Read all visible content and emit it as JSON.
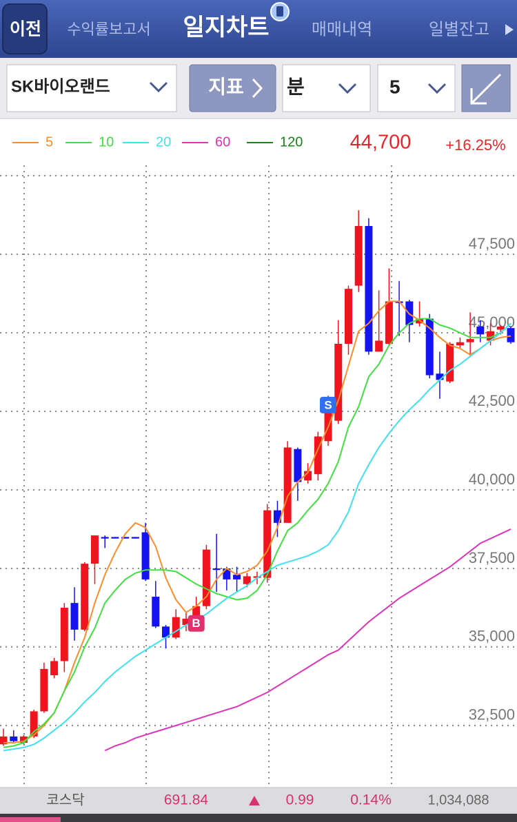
{
  "nav": {
    "back": "이전",
    "tabs": [
      "수익률보고서",
      "일지차트",
      "매매내역",
      "일별잔고"
    ]
  },
  "toolbar": {
    "stock": "SK바이오랜드",
    "indicator": "지표",
    "period": "분",
    "interval": "5"
  },
  "chart_data": {
    "type": "candlestick",
    "price": "44,700",
    "change": "+16.25%",
    "up_color": "#f0141e",
    "down_color": "#1414f0",
    "ylim": [
      30590,
      50330
    ],
    "yticks": [
      {
        "value": 32500,
        "label": "32,500"
      },
      {
        "value": 35000,
        "label": "35,000"
      },
      {
        "value": 37500,
        "label": "37,500"
      },
      {
        "value": 40000,
        "label": "40,000"
      },
      {
        "value": 42500,
        "label": "42,500"
      },
      {
        "value": 45000,
        "label": "45,000"
      },
      {
        "value": 47500,
        "label": "47,500"
      }
    ],
    "grid": true,
    "open": [
      31900,
      32150,
      31950,
      32150,
      32950,
      34100,
      34550,
      36400,
      35550,
      37650,
      38500,
      38500,
      38500,
      38500,
      38650,
      36600,
      35650,
      35300,
      35700,
      35850,
      36300,
      37500,
      37500,
      37300,
      37000,
      37200,
      37200,
      39350,
      38950,
      41300,
      40300,
      40500,
      41550,
      42200,
      44650,
      46500,
      48400,
      44400,
      44650,
      46000,
      46000,
      45300,
      45450,
      43700,
      43450,
      44600,
      44700,
      45200,
      44750,
      45100,
      45150
    ],
    "high": [
      32400,
      32350,
      32200,
      33000,
      34500,
      34650,
      36400,
      36900,
      37700,
      38550,
      38550,
      38500,
      38500,
      38500,
      38950,
      37100,
      35700,
      36200,
      36100,
      36600,
      38250,
      38600,
      37550,
      37550,
      37350,
      37400,
      39550,
      39650,
      41550,
      41350,
      40850,
      41850,
      43000,
      45400,
      46500,
      48900,
      48650,
      46350,
      47050,
      46650,
      46050,
      46000,
      45600,
      44400,
      44700,
      44850,
      45650,
      45400,
      45300,
      45250,
      45200
    ],
    "low": [
      31850,
      31950,
      31900,
      32100,
      32900,
      34000,
      34200,
      35200,
      35500,
      37000,
      38150,
      38450,
      38450,
      38450,
      37100,
      35600,
      34950,
      35250,
      35500,
      35700,
      36200,
      36750,
      36800,
      36750,
      36900,
      37000,
      37050,
      38500,
      38950,
      39650,
      40200,
      40300,
      41400,
      42100,
      44300,
      46300,
      44300,
      44400,
      44600,
      44900,
      44700,
      45200,
      43550,
      42900,
      43400,
      44500,
      44250,
      44700,
      44600,
      44950,
      44650
    ],
    "close": [
      32150,
      32000,
      32150,
      32950,
      34300,
      34550,
      36250,
      35550,
      37650,
      38550,
      38450,
      38450,
      38450,
      38450,
      37150,
      35650,
      35300,
      35950,
      35900,
      36300,
      38100,
      37450,
      37150,
      37150,
      37250,
      37250,
      39350,
      38950,
      41350,
      40250,
      40600,
      41700,
      42550,
      44650,
      46400,
      48400,
      44400,
      44750,
      46000,
      45950,
      45250,
      45450,
      43650,
      43500,
      44650,
      44700,
      44800,
      44950,
      45050,
      45200,
      44700
    ],
    "series": [
      {
        "name": "5",
        "color": "#ff8c28",
        "values": [
          31950,
          31950,
          32000,
          32200,
          32500,
          32900,
          33600,
          34500,
          35300,
          36400,
          37300,
          38000,
          38600,
          38950,
          38800,
          38200,
          37200,
          36500,
          36100,
          36300,
          36600,
          37150,
          37500,
          37300,
          37400,
          37600,
          38050,
          38800,
          39800,
          40250,
          40550,
          41300,
          42000,
          42850,
          43950,
          45050,
          45300,
          45700,
          46000,
          46000,
          45600,
          45400,
          45150,
          44850,
          44600,
          44500,
          44300,
          44500,
          44750,
          44850,
          44900
        ]
      },
      {
        "name": "10",
        "color": "#3fe03f",
        "values": [
          31800,
          31850,
          31950,
          32300,
          32550,
          32900,
          33600,
          34200,
          35000,
          35600,
          36400,
          36800,
          37150,
          37350,
          37450,
          37450,
          37450,
          37400,
          37200,
          37000,
          36850,
          36700,
          36600,
          36500,
          36550,
          36800,
          37300,
          38050,
          38700,
          38950,
          39350,
          39700,
          40200,
          40900,
          42000,
          42650,
          43600,
          44000,
          44600,
          45000,
          45300,
          45450,
          45450,
          45250,
          45150,
          45000,
          44850,
          44850,
          44850,
          45000,
          45300
        ]
      },
      {
        "name": "20",
        "color": "#3ee2f2",
        "values": [
          31700,
          31750,
          31800,
          31900,
          32100,
          32350,
          32600,
          32900,
          33250,
          33550,
          33900,
          34200,
          34450,
          34700,
          34900,
          35100,
          35300,
          35500,
          35700,
          35850,
          36050,
          36300,
          36550,
          36750,
          36950,
          37200,
          37400,
          37600,
          37700,
          37800,
          37900,
          38050,
          38250,
          38700,
          39300,
          40200,
          40800,
          41350,
          41800,
          42200,
          42550,
          42850,
          43200,
          43500,
          43800,
          44000,
          44250,
          44500,
          44750,
          45000,
          45300
        ]
      },
      {
        "name": "60",
        "color": "#dd33bb",
        "values": [
          null,
          null,
          null,
          null,
          null,
          null,
          null,
          null,
          null,
          null,
          31700,
          31850,
          31950,
          32100,
          32200,
          32300,
          32400,
          32500,
          32600,
          32700,
          32800,
          32900,
          33000,
          33100,
          33250,
          33400,
          33550,
          33750,
          33950,
          34150,
          34350,
          34550,
          34750,
          34900,
          35200,
          35500,
          35800,
          36050,
          36300,
          36550,
          36750,
          36950,
          37150,
          37350,
          37550,
          37800,
          38050,
          38300,
          38450,
          38600,
          38750
        ]
      },
      {
        "name": "120",
        "color": "#118811",
        "values": [
          null,
          null,
          null,
          null,
          null,
          null,
          null,
          null,
          null,
          null,
          null,
          null,
          null,
          null,
          null,
          null,
          null,
          null,
          null,
          null,
          null,
          null,
          null,
          null,
          null,
          null,
          null,
          null,
          null,
          null,
          null,
          null,
          null,
          null,
          null,
          null,
          null,
          null,
          null,
          null,
          null,
          null,
          null,
          null,
          null,
          null,
          null,
          null,
          null,
          null,
          null
        ]
      }
    ],
    "markers": [
      {
        "label": "B",
        "at": 19,
        "value": 35750,
        "color": "#e0306e"
      },
      {
        "label": "S",
        "at": 32,
        "value": 42700,
        "color": "#2f6ff0"
      }
    ]
  },
  "footer": {
    "index": "코스닥",
    "value": "691.84",
    "change": "0.99",
    "rate": "0.14%",
    "volume": "1,034,088"
  }
}
